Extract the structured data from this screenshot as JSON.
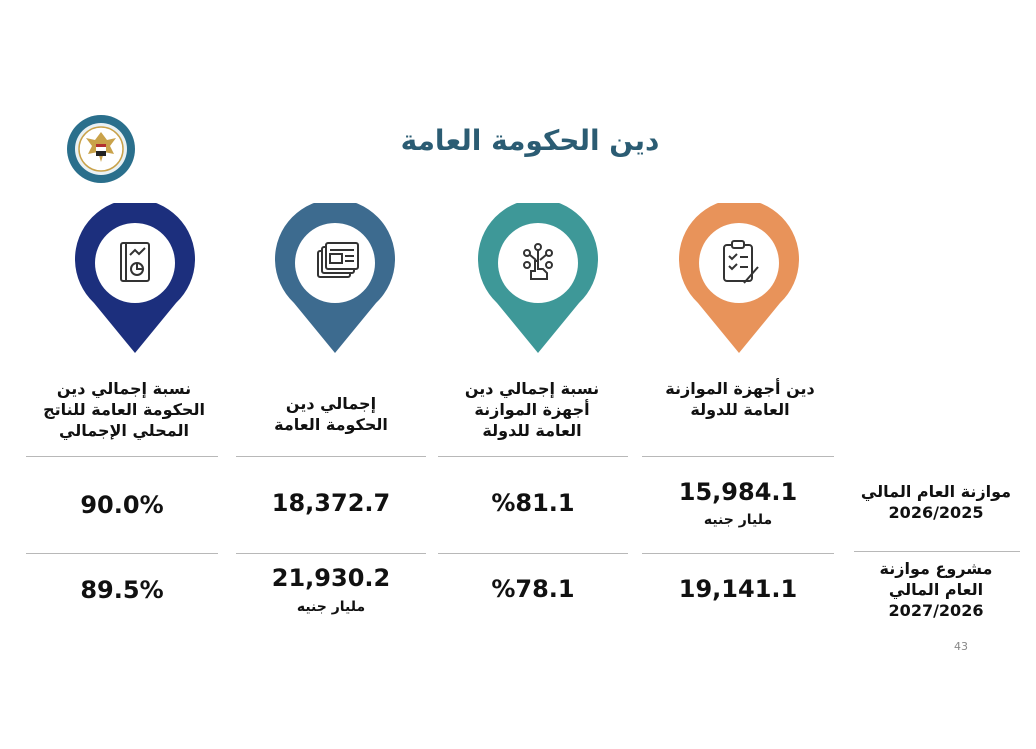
{
  "header": {
    "title": "دين الحكومة العامة",
    "logo_icon": "ministry-of-finance-emblem",
    "logo_text": "MINISTRY OF FINANCE"
  },
  "columns": [
    {
      "label_lines": [
        "دين أجهزة الموازنة",
        "العامة للدولة"
      ],
      "color": "#e8935a",
      "icon": "clipboard-checklist-icon"
    },
    {
      "label_lines": [
        "نسبة إجمالي دين",
        "أجهزة الموازنة",
        "العامة للدولة"
      ],
      "color": "#3e9898",
      "icon": "hand-network-icon"
    },
    {
      "label_lines": [
        "إجمالي دين",
        "الحكومة العامة"
      ],
      "color": "#3d6b8f",
      "icon": "documents-icon"
    },
    {
      "label_lines": [
        "نسبة إجمالي دين",
        "الحكومة العامة للناتج",
        "المحلي الإجمالي"
      ],
      "color": "#1c2f7d",
      "icon": "report-chart-icon"
    }
  ],
  "rows": [
    {
      "label_lines": [
        "موازنة العام المالي",
        "2026/2025"
      ],
      "values": [
        "15,984.1",
        "%81.1",
        "18,372.7",
        "90.0%"
      ],
      "unit": "مليار جنيه"
    },
    {
      "label_lines": [
        "مشروع موازنة",
        "العام المالي",
        "2027/2026"
      ],
      "values": [
        "19,141.1",
        "%78.1",
        "21,930.2",
        "89.5%"
      ],
      "unit": "مليار جنيه"
    }
  ],
  "footer": {
    "page_number": "43"
  }
}
